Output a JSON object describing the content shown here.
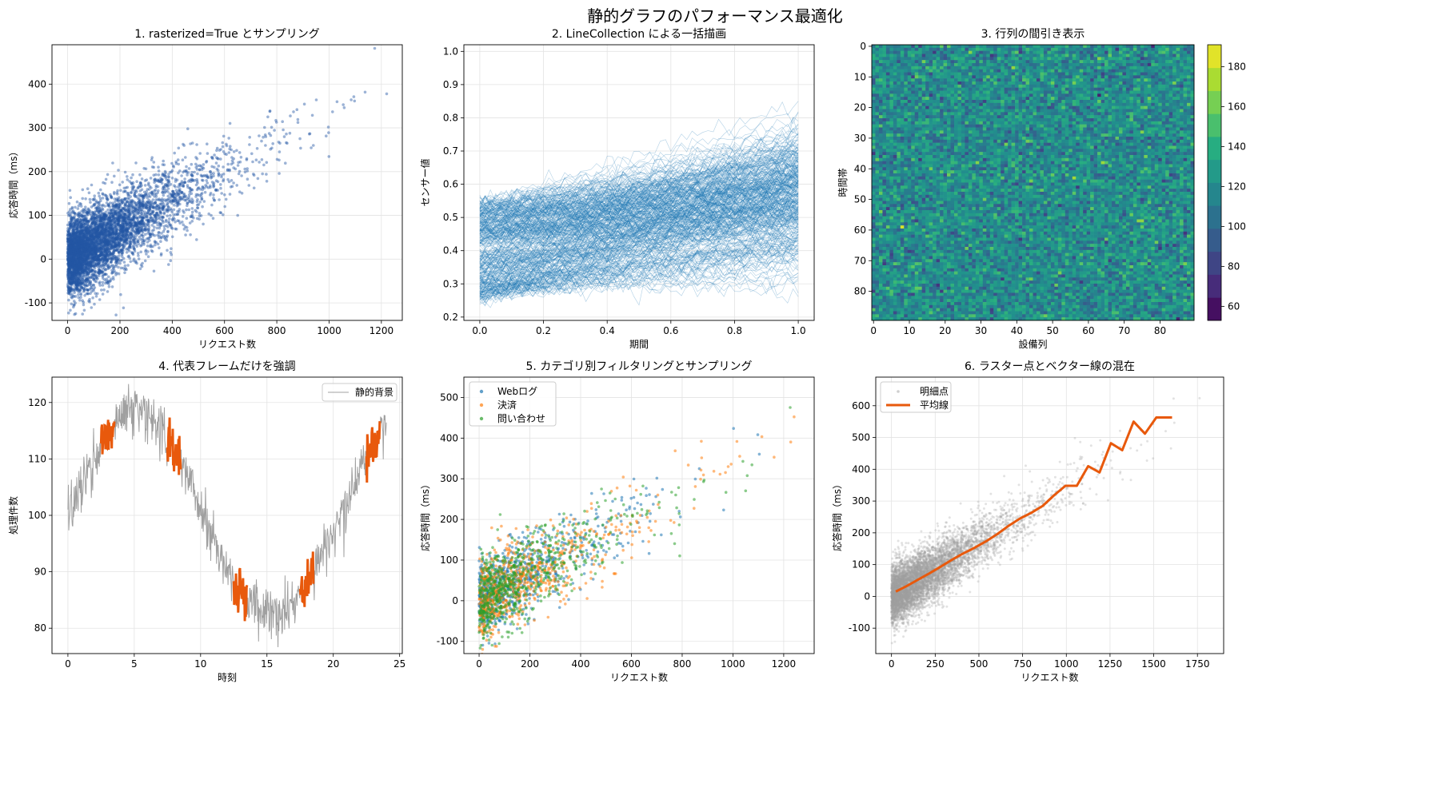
{
  "figure": {
    "suptitle": "静的グラフのパフォーマンス最適化"
  },
  "colors": {
    "scatter_blue": "#2457a5",
    "line_blue": "#1f77b4",
    "orange_highlight": "#e8590c",
    "gray_background": "#a0a0a0",
    "tab_blue": "#1f77b4",
    "tab_orange": "#ff7f0e",
    "tab_green": "#2ca02c",
    "mean_line": "#e8590c"
  },
  "chart_data": [
    {
      "type": "scatter",
      "title": "1. rasterized=True とサンプリング",
      "xlabel": "リクエスト数",
      "ylabel": "応答時間（ms）",
      "xlim": [
        -60,
        1280
      ],
      "ylim": [
        -140,
        490
      ],
      "xticks": [
        0,
        200,
        400,
        600,
        800,
        1000,
        1200
      ],
      "yticks": [
        -100,
        0,
        100,
        200,
        300,
        400
      ],
      "grid": true,
      "series": [
        {
          "color": "#2457a5",
          "n_points": 5000,
          "relation": "y ≈ 0.33·x + noise(σ≈45)",
          "x_range": [
            0,
            1240
          ],
          "y_range": [
            -110,
            460
          ]
        }
      ]
    },
    {
      "type": "line",
      "title": "2. LineCollection による一括描画",
      "xlabel": "期間",
      "ylabel": "センサー値",
      "xlim": [
        -0.05,
        1.05
      ],
      "ylim": [
        0.19,
        1.02
      ],
      "xticks": [
        0.0,
        0.2,
        0.4,
        0.6,
        0.8,
        1.0
      ],
      "yticks": [
        0.2,
        0.3,
        0.4,
        0.5,
        0.6,
        0.7,
        0.8,
        0.9,
        1.0
      ],
      "grid": true,
      "series": [
        {
          "color": "#1f77b4",
          "n_lines": 1000,
          "start_range": [
            0.25,
            0.55
          ],
          "end_range": [
            0.33,
            0.98
          ]
        }
      ]
    },
    {
      "type": "heatmap",
      "title": "3. 行列の間引き表示",
      "xlabel": "設備列",
      "ylabel": "時間帯",
      "rows": 90,
      "cols": 90,
      "xticks": [
        0,
        10,
        20,
        30,
        40,
        50,
        60,
        70,
        80
      ],
      "yticks": [
        0,
        10,
        20,
        30,
        40,
        50,
        60,
        70,
        80
      ],
      "colormap": "viridis",
      "vmin": 53,
      "vmax": 191,
      "colorbar_ticks": [
        60,
        80,
        100,
        120,
        140,
        160,
        180
      ],
      "value_mean": 120,
      "value_std": 15
    },
    {
      "type": "line",
      "title": "4. 代表フレームだけを強調",
      "xlabel": "時刻",
      "ylabel": "処理件数",
      "xlim": [
        -1.2,
        25.2
      ],
      "ylim": [
        75.5,
        124.5
      ],
      "xticks": [
        0,
        5,
        10,
        15,
        20,
        25
      ],
      "yticks": [
        80,
        90,
        100,
        110,
        120
      ],
      "grid": true,
      "legend_position": "upper right",
      "series": [
        {
          "name": "静的背景",
          "color": "#a0a0a0",
          "relation": "100 + 18·sin(2π·t/20.5) + noise",
          "x_range": [
            0,
            24
          ]
        },
        {
          "color": "#e8590c",
          "highlight_windows": [
            [
              2.5,
              3.5
            ],
            [
              7.5,
              8.5
            ],
            [
              12.5,
              13.5
            ],
            [
              17.5,
              18.5
            ],
            [
              22.5,
              23.5
            ]
          ]
        }
      ]
    },
    {
      "type": "scatter",
      "title": "5. カテゴリ別フィルタリングとサンプリング",
      "xlabel": "リクエスト数",
      "ylabel": "応答時間（ms）",
      "xlim": [
        -60,
        1320
      ],
      "ylim": [
        -130,
        550
      ],
      "xticks": [
        0,
        200,
        400,
        600,
        800,
        1000,
        1200
      ],
      "yticks": [
        -100,
        0,
        100,
        200,
        300,
        400,
        500
      ],
      "grid": true,
      "legend_position": "upper left",
      "series": [
        {
          "name": "Webログ",
          "color": "#1f77b4",
          "n_points": 700
        },
        {
          "name": "決済",
          "color": "#ff7f0e",
          "n_points": 700
        },
        {
          "name": "問い合わせ",
          "color": "#2ca02c",
          "n_points": 700
        }
      ],
      "relation": "y ≈ 0.33·x + noise(σ≈50)"
    },
    {
      "type": "scatter",
      "title": "6. ラスター点とベクター線の混在",
      "xlabel": "リクエスト数",
      "ylabel": "応答時間（ms）",
      "xlim": [
        -90,
        1900
      ],
      "ylim": [
        -180,
        690
      ],
      "xticks": [
        0,
        250,
        500,
        750,
        1000,
        1250,
        1500,
        1750
      ],
      "yticks": [
        -100,
        0,
        100,
        200,
        300,
        400,
        500,
        600
      ],
      "grid": true,
      "legend_position": "upper left",
      "series": [
        {
          "name": "明細点",
          "color": "#a0a0a0",
          "n_points": 20000,
          "relation": "y ≈ 0.33·x + noise(σ≈45)"
        },
        {
          "name": "平均線",
          "color": "#e8590c",
          "x": [
            25,
            85,
            150,
            215,
            280,
            345,
            410,
            475,
            540,
            605,
            670,
            735,
            800,
            865,
            930,
            995,
            1060,
            1125,
            1190,
            1255,
            1320,
            1385,
            1450,
            1515,
            1605
          ],
          "y": [
            15,
            32,
            52,
            72,
            93,
            115,
            135,
            153,
            173,
            196,
            222,
            245,
            263,
            285,
            318,
            348,
            348,
            410,
            390,
            482,
            460,
            550,
            512,
            563,
            563
          ]
        }
      ]
    }
  ]
}
